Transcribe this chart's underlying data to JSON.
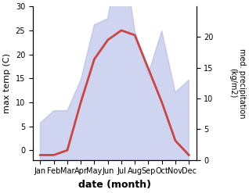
{
  "months": [
    "Jan",
    "Feb",
    "Mar",
    "Apr",
    "May",
    "Jun",
    "Jul",
    "Aug",
    "Sep",
    "Oct",
    "Nov",
    "Dec"
  ],
  "temperature": [
    -1,
    -1,
    0,
    10,
    19,
    23,
    25,
    24,
    17,
    10,
    2,
    -1
  ],
  "precipitation": [
    6,
    8,
    8,
    13,
    22,
    23,
    36,
    21,
    14,
    21,
    11,
    13
  ],
  "temp_color": "#cc4444",
  "precip_fill_color": "#b0b8e8",
  "precip_fill_alpha": 0.6,
  "temp_ylim": [
    -2,
    30
  ],
  "temp_yticks": [
    0,
    5,
    10,
    15,
    20,
    25,
    30
  ],
  "precip_ylim": [
    0,
    25
  ],
  "precip_yticks": [
    0,
    5,
    10,
    15,
    20
  ],
  "xlabel": "date (month)",
  "ylabel_left": "max temp (C)",
  "ylabel_right": "med. precipitation\n(kg/m2)",
  "line_width": 2.0,
  "background_color": "#ffffff"
}
